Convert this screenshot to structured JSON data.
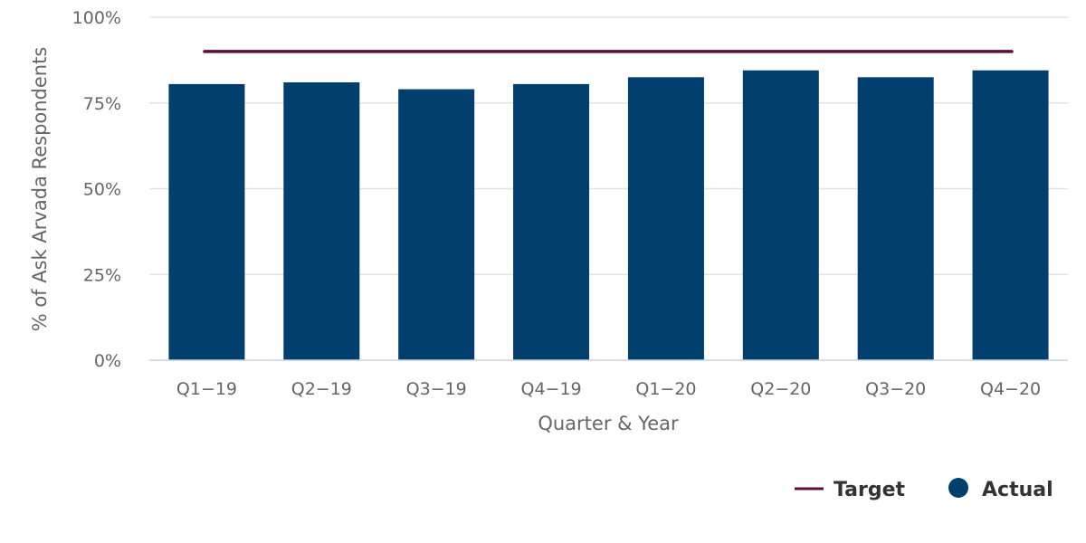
{
  "chart_data": {
    "type": "bar",
    "categories": [
      "Q1-19",
      "Q2-19",
      "Q3-19",
      "Q4-19",
      "Q1-20",
      "Q2-20",
      "Q3-20",
      "Q4-20"
    ],
    "series": [
      {
        "name": "Actual",
        "type": "bar",
        "color": "#003f6e",
        "values": [
          80.5,
          81,
          79,
          80.5,
          82.5,
          84.5,
          82.5,
          84.5
        ]
      },
      {
        "name": "Target",
        "type": "line",
        "color": "#5c1037",
        "values": [
          90,
          90,
          90,
          90,
          90,
          90,
          90,
          90
        ]
      }
    ],
    "ylim": [
      0,
      100
    ],
    "yticks": [
      "0%",
      "25%",
      "50%",
      "75%",
      "100%"
    ],
    "ytick_values": [
      0,
      25,
      50,
      75,
      100
    ],
    "xlabel": "Quarter & Year",
    "ylabel": "% of Ask Arvada Respondents",
    "grid": true,
    "legend": {
      "position": "bottom-right",
      "items": [
        {
          "label": "Target",
          "symbol": "line"
        },
        {
          "label": "Actual",
          "symbol": "circle"
        }
      ]
    }
  }
}
